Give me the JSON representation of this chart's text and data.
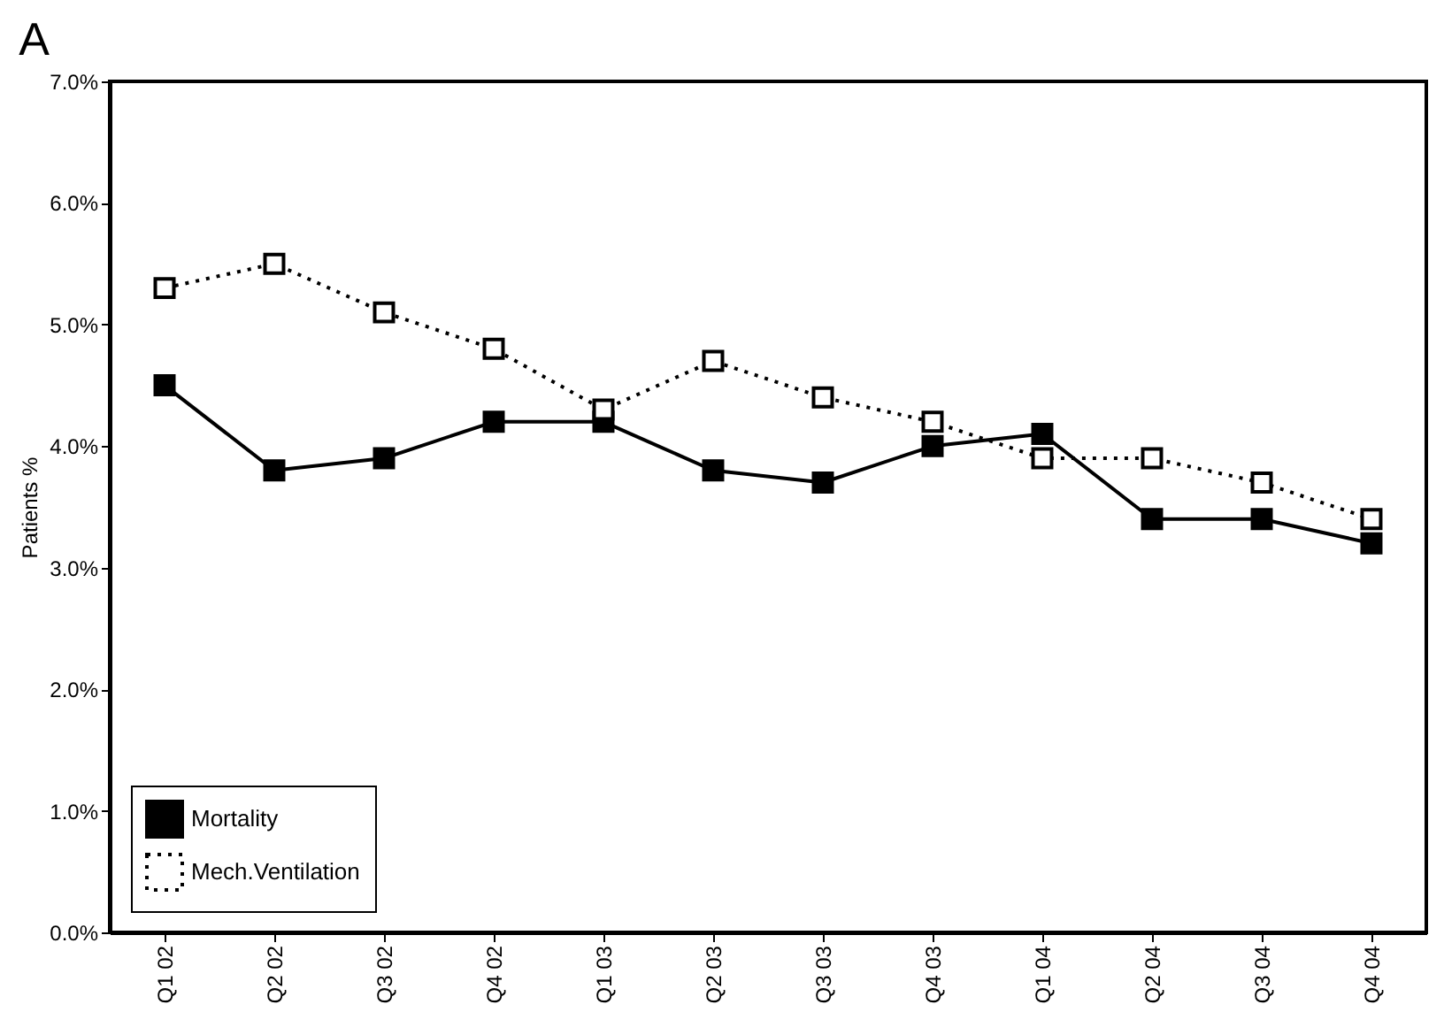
{
  "chart_data": {
    "type": "line",
    "title": "A",
    "ylabel": "Patients %",
    "categories": [
      "Q1 02",
      "Q2 02",
      "Q3 02",
      "Q4 02",
      "Q1 03",
      "Q2 03",
      "Q3 03",
      "Q4 03",
      "Q1 04",
      "Q2 04",
      "Q3 04",
      "Q4 04"
    ],
    "series": [
      {
        "name": "Mortality",
        "color": "#000000",
        "line_style": "solid",
        "marker": "square",
        "values": [
          4.5,
          3.8,
          3.9,
          4.2,
          4.2,
          3.8,
          3.7,
          4.0,
          4.1,
          3.4,
          3.4,
          3.2
        ]
      },
      {
        "name": "Mech.Ventilation",
        "color": "#000000",
        "line_style": "dotted",
        "marker": "square",
        "values": [
          5.3,
          5.5,
          5.1,
          4.8,
          4.3,
          4.7,
          4.4,
          4.2,
          3.9,
          3.9,
          3.7,
          3.4
        ]
      }
    ],
    "ylim": [
      0,
      7
    ],
    "yticks": [
      {
        "value": 0,
        "label": "0.0%"
      },
      {
        "value": 1,
        "label": "1.0%"
      },
      {
        "value": 2,
        "label": "2.0%"
      },
      {
        "value": 3,
        "label": "3.0%"
      },
      {
        "value": 4,
        "label": "4.0%"
      },
      {
        "value": 5,
        "label": "5.0%"
      },
      {
        "value": 6,
        "label": "6.0%"
      },
      {
        "value": 7,
        "label": "7.0%"
      }
    ],
    "grid": false,
    "legend": "bottom left"
  }
}
